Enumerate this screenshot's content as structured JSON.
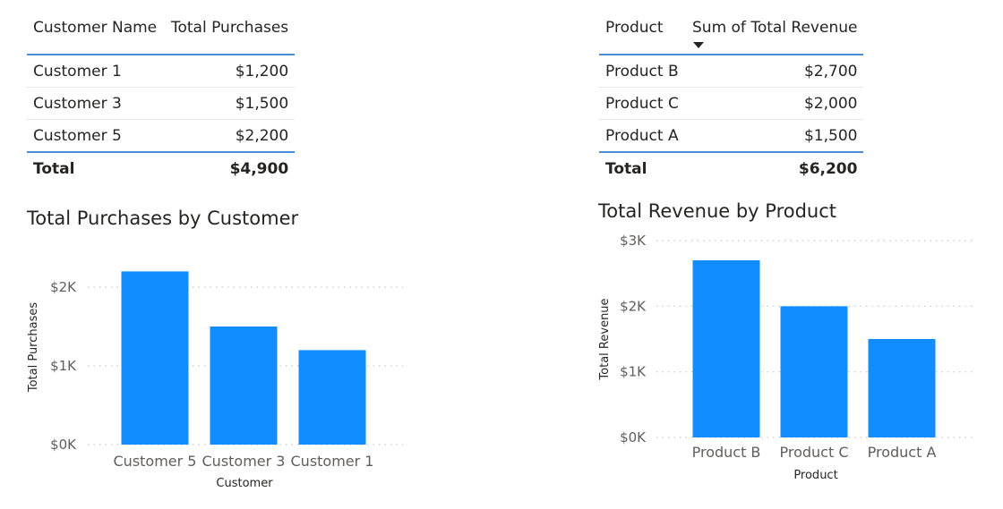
{
  "table_purchases": {
    "headers": [
      "Customer Name",
      "Total Purchases"
    ],
    "rows": [
      {
        "name": "Customer 1",
        "value": "$1,200"
      },
      {
        "name": "Customer 3",
        "value": "$1,500"
      },
      {
        "name": "Customer 5",
        "value": "$2,200"
      }
    ],
    "total": {
      "label": "Total",
      "value": "$4,900"
    }
  },
  "table_revenue": {
    "headers": [
      "Product",
      "Sum of Total Revenue"
    ],
    "sort_icon": "sort-descending-icon",
    "rows": [
      {
        "name": "Product B",
        "value": "$2,700"
      },
      {
        "name": "Product C",
        "value": "$2,000"
      },
      {
        "name": "Product A",
        "value": "$1,500"
      }
    ],
    "total": {
      "label": "Total",
      "value": "$6,200"
    }
  },
  "chart_data": [
    {
      "type": "bar",
      "title": "Total Purchases by Customer",
      "categories": [
        "Customer 5",
        "Customer 3",
        "Customer 1"
      ],
      "values": [
        2200,
        1500,
        1200
      ],
      "xlabel": "Customer",
      "ylabel": "Total Purchases",
      "ylim": [
        0,
        2400
      ],
      "yticks": [
        0,
        1000,
        2000
      ],
      "ytick_labels": [
        "$0K",
        "$1K",
        "$2K"
      ],
      "grid": true,
      "color": "#118dff"
    },
    {
      "type": "bar",
      "title": "Total Revenue by Product",
      "categories": [
        "Product B",
        "Product C",
        "Product A"
      ],
      "values": [
        2700,
        2000,
        1500
      ],
      "xlabel": "Product",
      "ylabel": "Total Revenue",
      "ylim": [
        0,
        3000
      ],
      "yticks": [
        0,
        1000,
        2000,
        3000
      ],
      "ytick_labels": [
        "$0K",
        "$1K",
        "$2K",
        "$3K"
      ],
      "grid": true,
      "color": "#118dff"
    }
  ]
}
